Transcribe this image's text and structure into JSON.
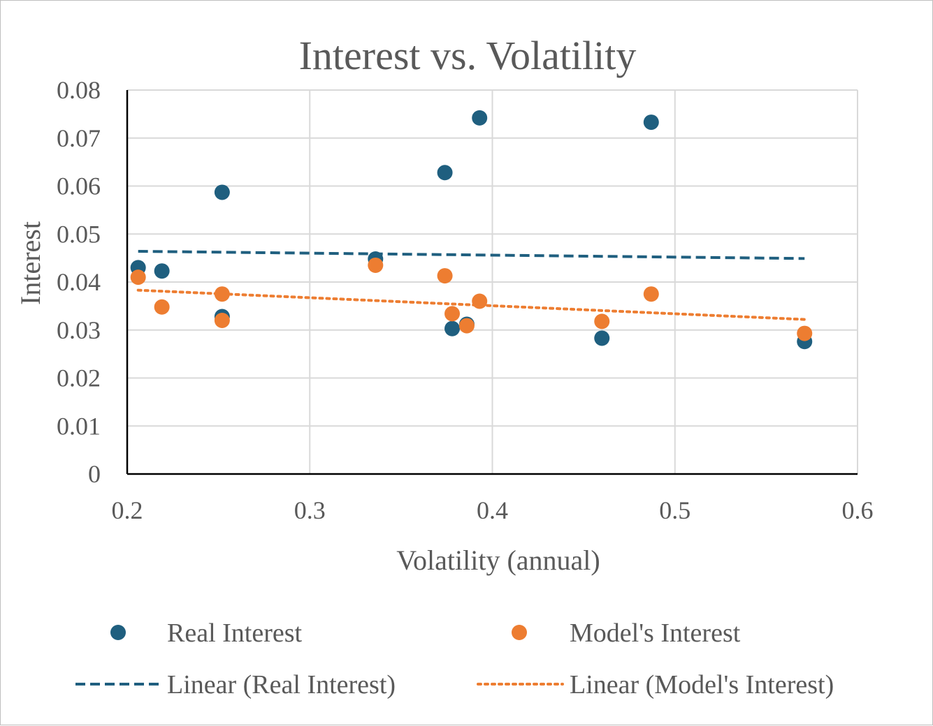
{
  "chart_data": {
    "type": "scatter",
    "title": "Interest vs. Volatility",
    "xlabel": "Volatility (annual)",
    "ylabel": "Interest",
    "xlim": [
      0.2,
      0.6
    ],
    "ylim": [
      0,
      0.08
    ],
    "x_ticks": [
      "0.2",
      "0.3",
      "0.4",
      "0.5",
      "0.6"
    ],
    "y_ticks": [
      "0",
      "0.01",
      "0.02",
      "0.03",
      "0.04",
      "0.05",
      "0.06",
      "0.07",
      "0.08"
    ],
    "grid": true,
    "legend_position": "bottom",
    "series": [
      {
        "name": "Real Interest",
        "color": "#1f5f7f",
        "points": [
          {
            "x": 0.206,
            "y": 0.043
          },
          {
            "x": 0.219,
            "y": 0.0423
          },
          {
            "x": 0.252,
            "y": 0.0587
          },
          {
            "x": 0.252,
            "y": 0.0328
          },
          {
            "x": 0.336,
            "y": 0.0448
          },
          {
            "x": 0.374,
            "y": 0.0628
          },
          {
            "x": 0.378,
            "y": 0.0303
          },
          {
            "x": 0.386,
            "y": 0.0312
          },
          {
            "x": 0.393,
            "y": 0.0742
          },
          {
            "x": 0.46,
            "y": 0.0283
          },
          {
            "x": 0.487,
            "y": 0.0733
          },
          {
            "x": 0.571,
            "y": 0.0276
          }
        ]
      },
      {
        "name": "Model's Interest",
        "color": "#ed7d31",
        "points": [
          {
            "x": 0.206,
            "y": 0.041
          },
          {
            "x": 0.219,
            "y": 0.0348
          },
          {
            "x": 0.252,
            "y": 0.0375
          },
          {
            "x": 0.252,
            "y": 0.032
          },
          {
            "x": 0.336,
            "y": 0.0435
          },
          {
            "x": 0.374,
            "y": 0.0413
          },
          {
            "x": 0.378,
            "y": 0.0334
          },
          {
            "x": 0.386,
            "y": 0.0309
          },
          {
            "x": 0.393,
            "y": 0.036
          },
          {
            "x": 0.46,
            "y": 0.0318
          },
          {
            "x": 0.487,
            "y": 0.0375
          },
          {
            "x": 0.571,
            "y": 0.0293
          }
        ]
      }
    ],
    "trendlines": [
      {
        "name": "Linear (Real Interest)",
        "color": "#1f5f7f",
        "style": "dashed",
        "from": {
          "x": 0.206,
          "y": 0.0464
        },
        "to": {
          "x": 0.571,
          "y": 0.0449
        }
      },
      {
        "name": "Linear (Model's Interest)",
        "color": "#ed7d31",
        "style": "dotted",
        "from": {
          "x": 0.206,
          "y": 0.0383
        },
        "to": {
          "x": 0.571,
          "y": 0.0322
        }
      }
    ]
  }
}
